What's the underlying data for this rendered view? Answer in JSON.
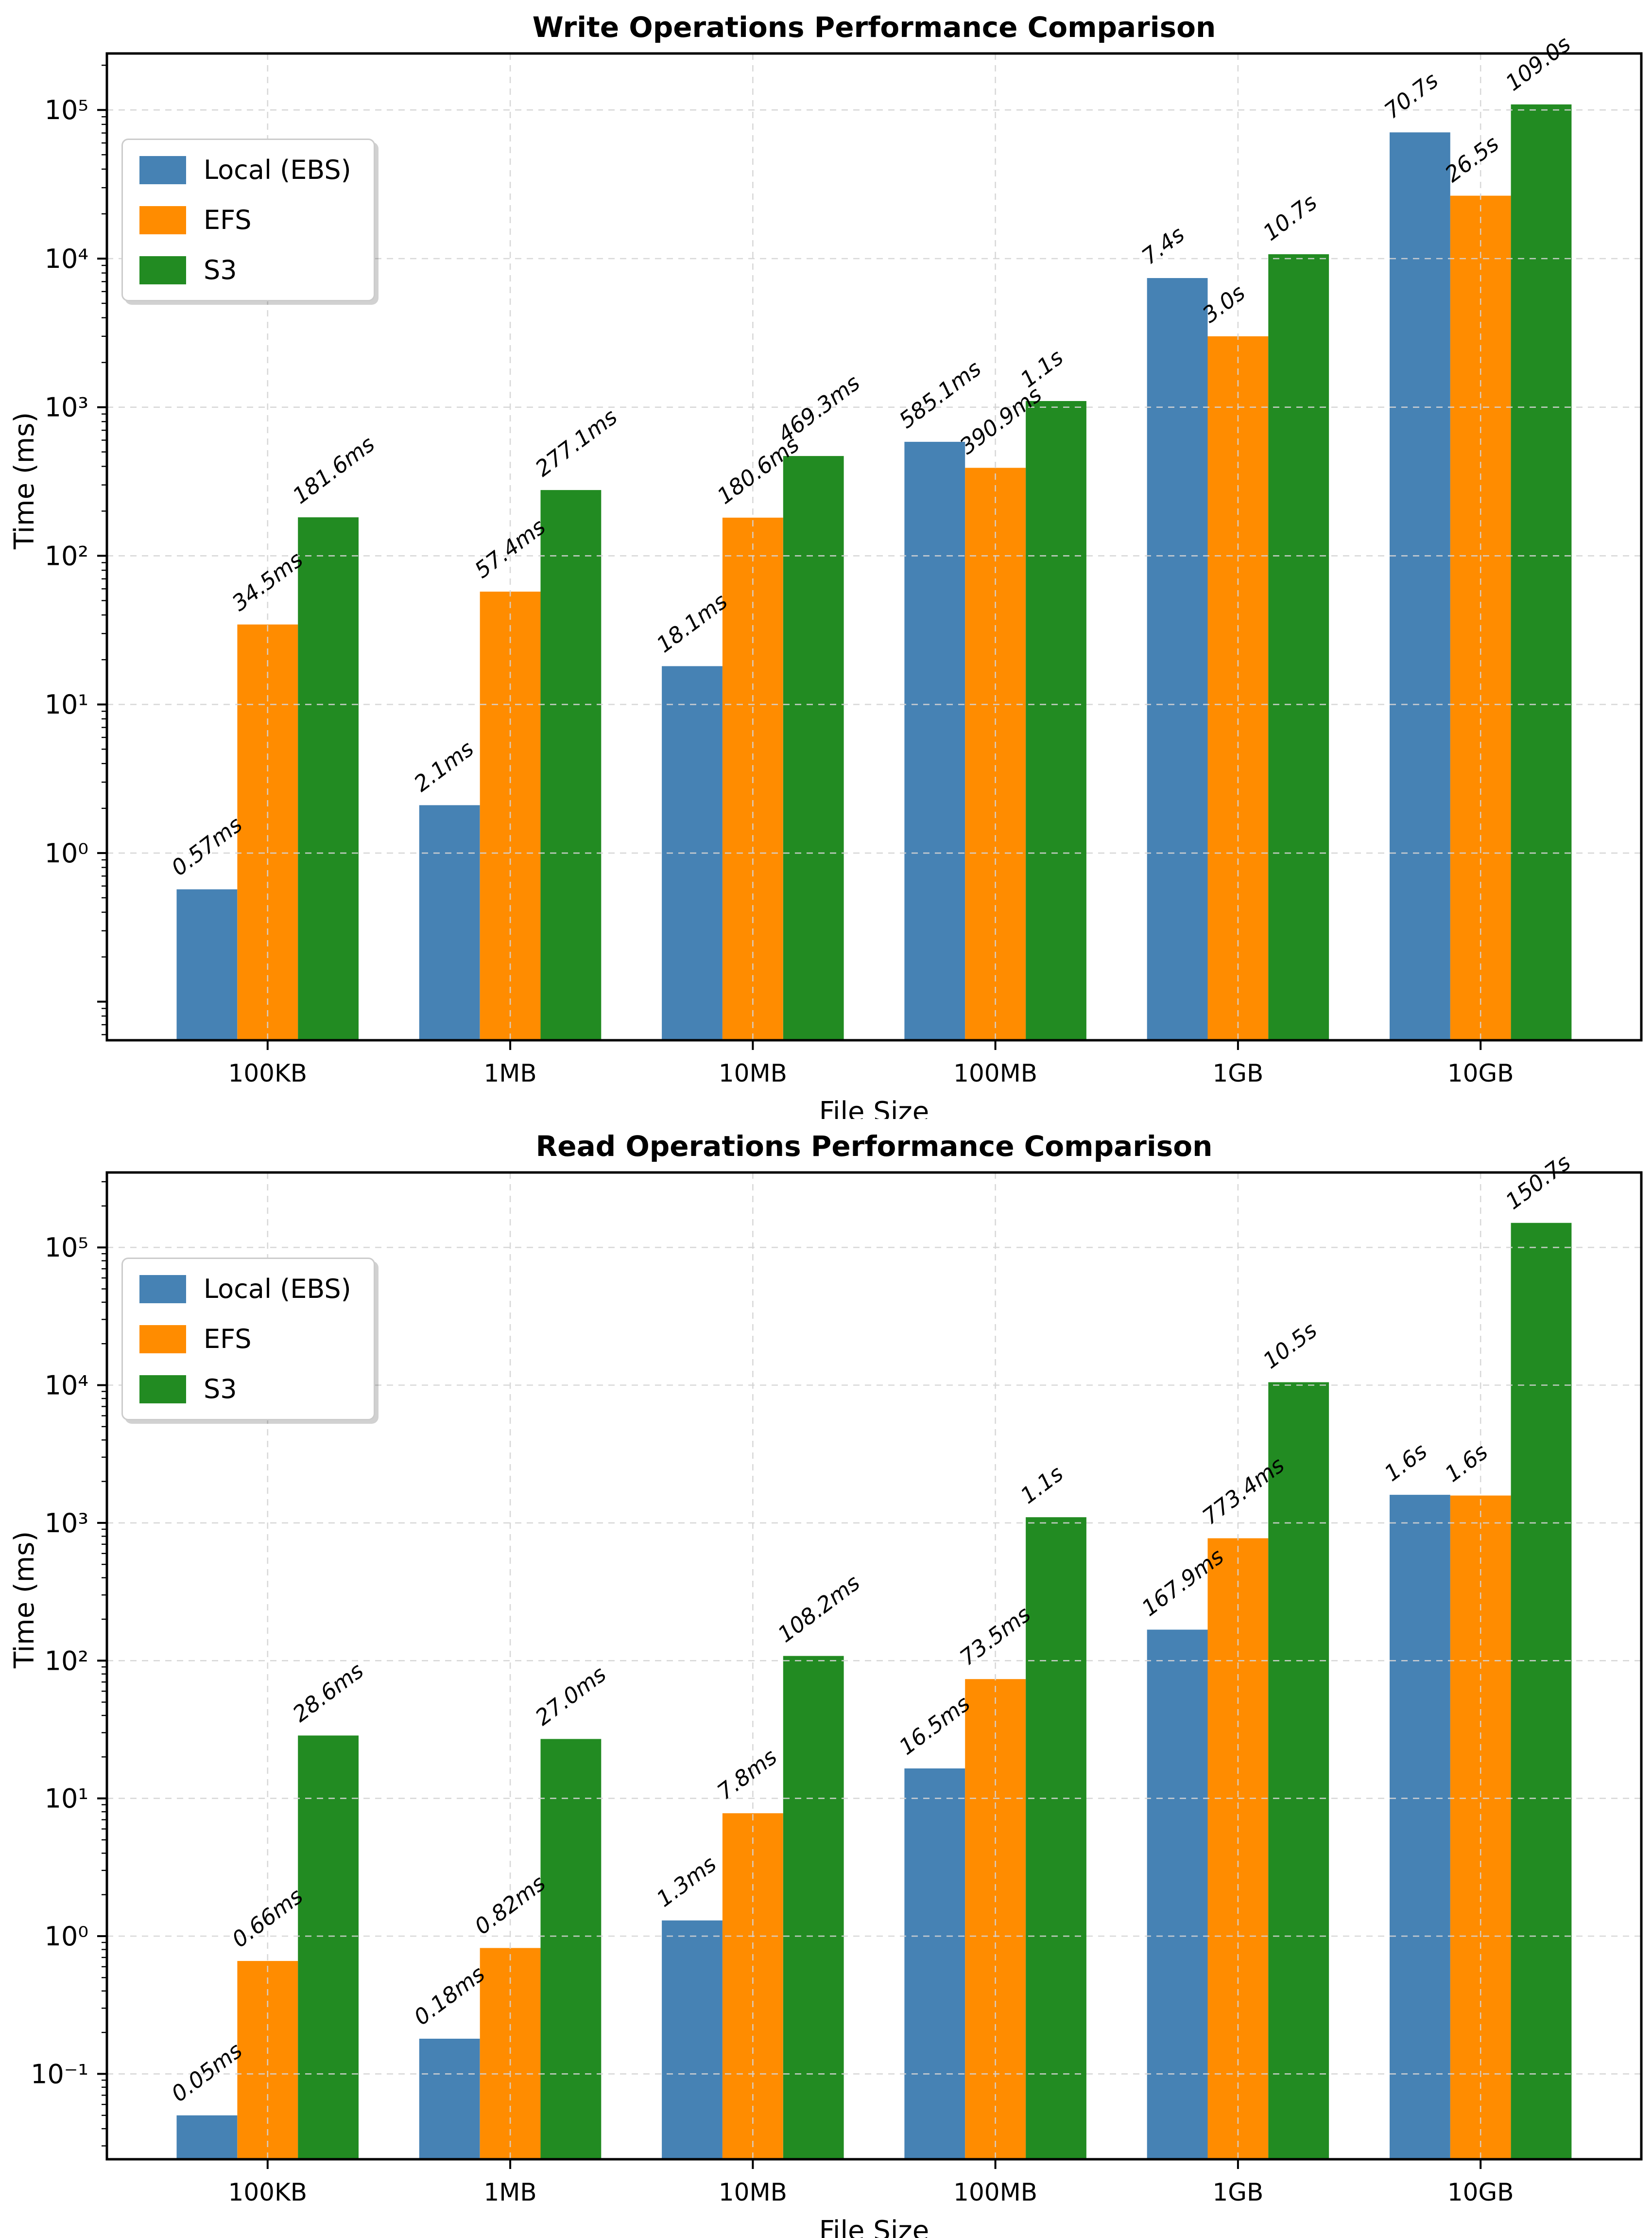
{
  "chart_data": [
    {
      "type": "bar",
      "title": "Write Operations Performance Comparison",
      "xlabel": "File Size",
      "ylabel": "Time (ms)",
      "yscale": "log",
      "grid": true,
      "legend_position": "upper left",
      "categories": [
        "100KB",
        "1MB",
        "10MB",
        "100MB",
        "1GB",
        "10GB"
      ],
      "series": [
        {
          "name": "Local (EBS)",
          "color": "#4682b4",
          "values": [
            0.57,
            2.1,
            18.1,
            585.1,
            7400,
            70700
          ],
          "labels": [
            "0.57ms",
            "2.1ms",
            "18.1ms",
            "585.1ms",
            "7.4s",
            "70.7s"
          ]
        },
        {
          "name": "EFS",
          "color": "#ff8c00",
          "values": [
            34.5,
            57.4,
            180.6,
            390.9,
            3000,
            26500
          ],
          "labels": [
            "34.5ms",
            "57.4ms",
            "180.6ms",
            "390.9ms",
            "3.0s",
            "26.5s"
          ]
        },
        {
          "name": "S3",
          "color": "#228b22",
          "values": [
            181.6,
            277.1,
            469.3,
            1100,
            10700,
            109000
          ],
          "labels": [
            "181.6ms",
            "277.1ms",
            "469.3ms",
            "1.1s",
            "10.7s",
            "109.0s"
          ]
        }
      ],
      "ylim": [
        0.055,
        240000
      ],
      "yticks": [
        1,
        10,
        100,
        1000,
        10000,
        100000
      ],
      "ytick_labels": [
        "10⁰",
        "10¹",
        "10²",
        "10³",
        "10⁴",
        "10⁵"
      ]
    },
    {
      "type": "bar",
      "title": "Read Operations Performance Comparison",
      "xlabel": "File Size",
      "ylabel": "Time (ms)",
      "yscale": "log",
      "grid": true,
      "legend_position": "upper left",
      "categories": [
        "100KB",
        "1MB",
        "10MB",
        "100MB",
        "1GB",
        "10GB"
      ],
      "series": [
        {
          "name": "Local (EBS)",
          "color": "#4682b4",
          "values": [
            0.05,
            0.18,
            1.3,
            16.5,
            167.9,
            1600
          ],
          "labels": [
            "0.05ms",
            "0.18ms",
            "1.3ms",
            "16.5ms",
            "167.9ms",
            "1.6s"
          ]
        },
        {
          "name": "EFS",
          "color": "#ff8c00",
          "values": [
            0.66,
            0.82,
            7.8,
            73.5,
            773.4,
            1580
          ],
          "labels": [
            "0.66ms",
            "0.82ms",
            "7.8ms",
            "73.5ms",
            "773.4ms",
            "1.6s"
          ]
        },
        {
          "name": "S3",
          "color": "#228b22",
          "values": [
            28.6,
            27.0,
            108.2,
            1100,
            10500,
            150700
          ],
          "labels": [
            "28.6ms",
            "27.0ms",
            "108.2ms",
            "1.1s",
            "10.5s",
            "150.7s"
          ]
        }
      ],
      "ylim": [
        0.024,
        350000
      ],
      "yticks": [
        0.1,
        1,
        10,
        100,
        1000,
        10000,
        100000
      ],
      "ytick_labels": [
        "10⁻¹",
        "10⁰",
        "10¹",
        "10²",
        "10³",
        "10⁴",
        "10⁵"
      ]
    }
  ],
  "style": {
    "grid_color": "#d4d4d4",
    "spine_color": "#000000",
    "background": "#ffffff"
  }
}
